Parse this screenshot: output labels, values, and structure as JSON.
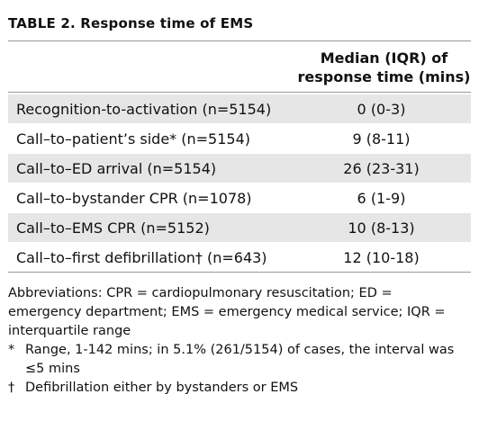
{
  "title": "TABLE 2.  Response time of EMS",
  "table": {
    "header": {
      "value_column": "Median (IQR) of response time (mins)"
    },
    "rows": [
      [
        "Recognition-to-activation (n=5154)",
        "0 (0-3)"
      ],
      [
        "Call–to–patient’s side* (n=5154)",
        "9 (8-11)"
      ],
      [
        "Call–to–ED arrival (n=5154)",
        "26 (23-31)"
      ],
      [
        "Call–to–bystander CPR (n=1078)",
        "6 (1-9)"
      ],
      [
        "Call–to–EMS CPR (n=5152)",
        "10 (8-13)"
      ],
      [
        "Call–to–first defibrillation† (n=643)",
        "12 (10-18)"
      ]
    ]
  },
  "footnotes": {
    "abbreviations": "Abbreviations: CPR = cardiopulmonary resuscitation; ED = emergency department; EMS = emergency medical service; IQR = interquartile range",
    "notes": [
      {
        "symbol": "*",
        "text": "Range, 1-142 mins; in 5.1% (261/5154) of cases, the interval was ≤5 mins"
      },
      {
        "symbol": "†",
        "text": "Defibrillation either by bystanders or EMS"
      }
    ]
  }
}
